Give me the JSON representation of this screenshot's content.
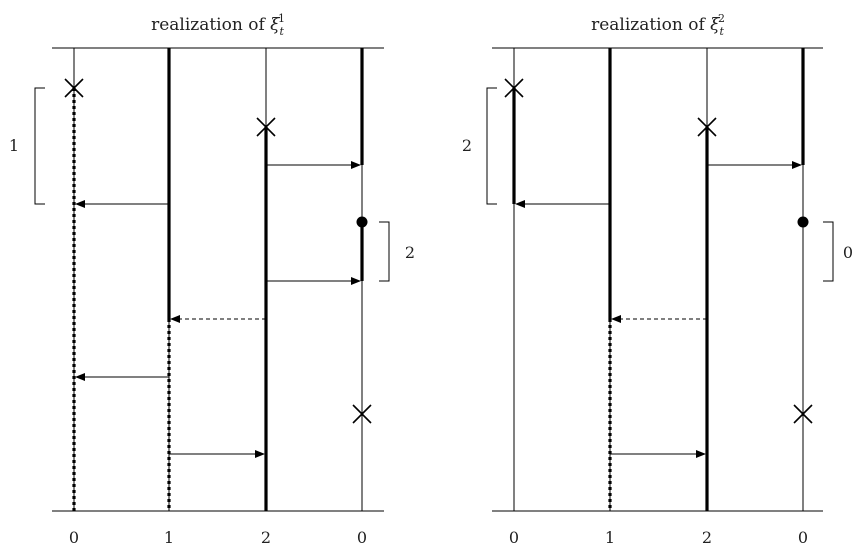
{
  "panels": [
    {
      "title_prefix": "realization of ",
      "title_symbol": "ξ",
      "title_sub": "t",
      "title_sup": "1",
      "x_labels": [
        "0",
        "1",
        "2",
        "0"
      ],
      "bracket_labels": [
        "1",
        "2"
      ]
    },
    {
      "title_prefix": "realization of ",
      "title_symbol": "ξ",
      "title_sub": "t",
      "title_sup": "2",
      "x_labels": [
        "0",
        "1",
        "2",
        "0"
      ],
      "bracket_labels": [
        "2",
        "0"
      ]
    }
  ]
}
